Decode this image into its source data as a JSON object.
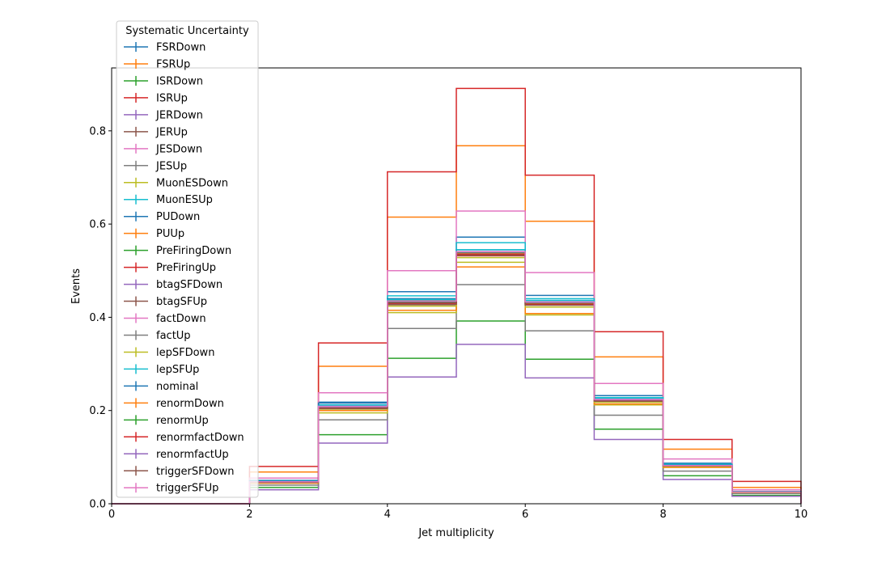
{
  "chart_data": {
    "type": "line",
    "title": "",
    "xlabel": "Jet multiplicity",
    "ylabel": "Events",
    "xlim": [
      0,
      10
    ],
    "ylim": [
      0,
      0.935
    ],
    "grid": false,
    "xticks": [
      0,
      2,
      4,
      6,
      8,
      10
    ],
    "yticks": [
      0.0,
      0.2,
      0.4,
      0.6,
      0.8
    ],
    "xtick_labels": [
      "0",
      "2",
      "4",
      "6",
      "8",
      "10"
    ],
    "ytick_labels": [
      "0.0",
      "0.2",
      "0.4",
      "0.6",
      "0.8"
    ],
    "bin_edges": [
      0,
      1,
      2,
      3,
      4,
      5,
      6,
      7,
      8,
      9,
      10
    ],
    "legend": {
      "title": "Systematic Uncertainty",
      "placement": "upper-left"
    },
    "series": [
      {
        "name": "FSRDown",
        "color": "#1f77b4",
        "values": [
          0,
          0,
          0.05,
          0.218,
          0.455,
          0.572,
          0.447,
          0.232,
          0.087,
          0.025
        ]
      },
      {
        "name": "FSRUp",
        "color": "#ff7f0e",
        "values": [
          0,
          0,
          0.068,
          0.295,
          0.615,
          0.768,
          0.606,
          0.315,
          0.117,
          0.035
        ]
      },
      {
        "name": "ISRDown",
        "color": "#2ca02c",
        "values": [
          0,
          0,
          0.035,
          0.148,
          0.312,
          0.392,
          0.31,
          0.16,
          0.06,
          0.018
        ]
      },
      {
        "name": "ISRUp",
        "color": "#d62728",
        "values": [
          0,
          0,
          0.08,
          0.345,
          0.712,
          0.891,
          0.705,
          0.369,
          0.138,
          0.048
        ]
      },
      {
        "name": "JERDown",
        "color": "#9467bd",
        "values": [
          0,
          0,
          0.03,
          0.13,
          0.272,
          0.342,
          0.27,
          0.138,
          0.052,
          0.016
        ]
      },
      {
        "name": "JERUp",
        "color": "#8c564b",
        "values": [
          0,
          0,
          0.045,
          0.205,
          0.425,
          0.535,
          0.43,
          0.218,
          0.08,
          0.025
        ]
      },
      {
        "name": "JESDown",
        "color": "#e377c2",
        "values": [
          0,
          0,
          0.055,
          0.238,
          0.5,
          0.628,
          0.496,
          0.258,
          0.096,
          0.03
        ]
      },
      {
        "name": "JESUp",
        "color": "#7f7f7f",
        "values": [
          0,
          0,
          0.04,
          0.18,
          0.376,
          0.47,
          0.371,
          0.19,
          0.07,
          0.022
        ]
      },
      {
        "name": "MuonESDown",
        "color": "#bcbd22",
        "values": [
          0,
          0,
          0.045,
          0.195,
          0.41,
          0.518,
          0.405,
          0.212,
          0.078,
          0.024
        ]
      },
      {
        "name": "MuonESUp",
        "color": "#17becf",
        "values": [
          0,
          0,
          0.048,
          0.212,
          0.446,
          0.56,
          0.44,
          0.228,
          0.085,
          0.026
        ]
      },
      {
        "name": "PUDown",
        "color": "#1f77b4",
        "values": [
          0,
          0,
          0.049,
          0.216,
          0.44,
          0.545,
          0.436,
          0.226,
          0.084,
          0.026
        ]
      },
      {
        "name": "PUUp",
        "color": "#ff7f0e",
        "values": [
          0,
          0,
          0.044,
          0.2,
          0.415,
          0.508,
          0.408,
          0.214,
          0.078,
          0.024
        ]
      },
      {
        "name": "PreFiringDown",
        "color": "#2ca02c",
        "values": [
          0,
          0,
          0.047,
          0.208,
          0.436,
          0.54,
          0.432,
          0.224,
          0.082,
          0.025
        ]
      },
      {
        "name": "PreFiringUp",
        "color": "#d62728",
        "values": [
          0,
          0,
          0.046,
          0.205,
          0.428,
          0.532,
          0.426,
          0.22,
          0.081,
          0.025
        ]
      },
      {
        "name": "btagSFDown",
        "color": "#9467bd",
        "values": [
          0,
          0,
          0.046,
          0.206,
          0.43,
          0.536,
          0.428,
          0.221,
          0.081,
          0.025
        ]
      },
      {
        "name": "btagSFUp",
        "color": "#8c564b",
        "values": [
          0,
          0,
          0.047,
          0.207,
          0.432,
          0.538,
          0.43,
          0.222,
          0.082,
          0.025
        ]
      },
      {
        "name": "factDown",
        "color": "#e377c2",
        "values": [
          0,
          0,
          0.046,
          0.206,
          0.431,
          0.537,
          0.429,
          0.222,
          0.081,
          0.025
        ]
      },
      {
        "name": "factUp",
        "color": "#7f7f7f",
        "values": [
          0,
          0,
          0.046,
          0.205,
          0.429,
          0.535,
          0.427,
          0.221,
          0.081,
          0.025
        ]
      },
      {
        "name": "lepSFDown",
        "color": "#bcbd22",
        "values": [
          0,
          0,
          0.045,
          0.203,
          0.424,
          0.528,
          0.422,
          0.218,
          0.08,
          0.024
        ]
      },
      {
        "name": "lepSFUp",
        "color": "#17becf",
        "values": [
          0,
          0,
          0.048,
          0.21,
          0.438,
          0.545,
          0.436,
          0.226,
          0.083,
          0.026
        ]
      },
      {
        "name": "nominal",
        "color": "#1f77b4",
        "values": [
          0,
          0,
          0.047,
          0.207,
          0.432,
          0.538,
          0.43,
          0.222,
          0.082,
          0.025
        ]
      },
      {
        "name": "renormDown",
        "color": "#ff7f0e",
        "values": [
          0,
          0,
          0.046,
          0.206,
          0.43,
          0.536,
          0.429,
          0.221,
          0.081,
          0.025
        ]
      },
      {
        "name": "renormUp",
        "color": "#2ca02c",
        "values": [
          0,
          0,
          0.047,
          0.207,
          0.433,
          0.539,
          0.431,
          0.223,
          0.082,
          0.025
        ]
      },
      {
        "name": "renormfactDown",
        "color": "#d62728",
        "values": [
          0,
          0,
          0.046,
          0.205,
          0.43,
          0.535,
          0.428,
          0.221,
          0.081,
          0.025
        ]
      },
      {
        "name": "renormfactUp",
        "color": "#9467bd",
        "values": [
          0,
          0,
          0.047,
          0.208,
          0.434,
          0.54,
          0.432,
          0.223,
          0.082,
          0.025
        ]
      },
      {
        "name": "triggerSFDown",
        "color": "#8c564b",
        "values": [
          0,
          0,
          0.046,
          0.204,
          0.428,
          0.533,
          0.426,
          0.22,
          0.081,
          0.025
        ]
      },
      {
        "name": "triggerSFUp",
        "color": "#e377c2",
        "values": [
          0,
          0,
          0.047,
          0.209,
          0.435,
          0.541,
          0.433,
          0.224,
          0.082,
          0.025
        ]
      }
    ]
  }
}
